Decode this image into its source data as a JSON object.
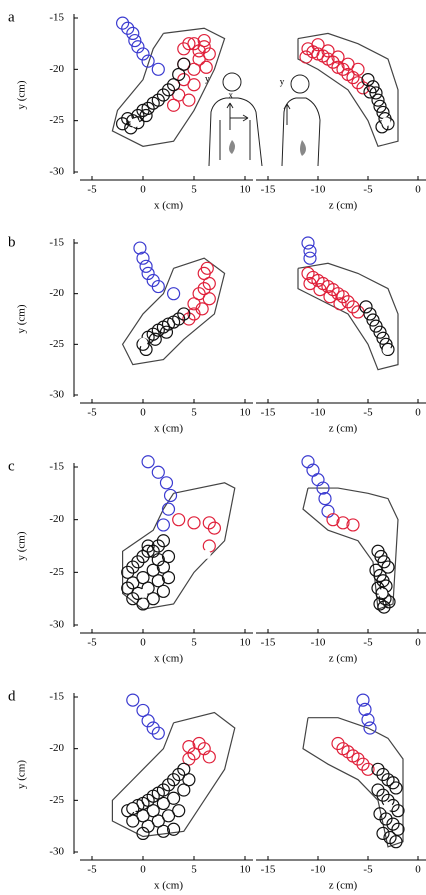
{
  "chart_data": [
    {
      "type": "scatter",
      "panel": "a",
      "xlabel": "x (cm)",
      "ylabel": "y (cm)",
      "xlim": [
        -5,
        10
      ],
      "ylim": [
        -30,
        -15
      ],
      "xticks": [
        -5,
        0,
        5,
        10
      ],
      "yticks": [
        -15,
        -20,
        -25,
        -30
      ],
      "outline": {
        "x": [
          2,
          6,
          8,
          7,
          5,
          3,
          0,
          -3,
          -2.5,
          0,
          1,
          2
        ],
        "y": [
          -16.5,
          -16,
          -17,
          -20,
          -24,
          -27,
          -27.5,
          -26,
          -24,
          -21,
          -18,
          -16.5
        ]
      },
      "annotations": [
        {
          "text": "y",
          "x": 6.3,
          "y": -21
        },
        {
          "text": "x",
          "x": 8.6,
          "y": -22.6
        }
      ],
      "series": [
        {
          "color": "#3b3bd0",
          "x": [
            -2,
            -1.5,
            -1,
            -0.8,
            -0.5,
            0,
            0.5,
            1.5
          ],
          "y": [
            -15.5,
            -16,
            -16.5,
            -17.2,
            -17.8,
            -18.5,
            -19.2,
            -20
          ]
        },
        {
          "color": "#e0203a",
          "x": [
            4.5,
            5,
            6,
            6.5,
            5.5,
            4,
            5,
            4,
            5,
            3.5,
            4.5,
            3,
            6,
            4,
            5.5,
            6.2
          ],
          "y": [
            -17.5,
            -17.5,
            -17.8,
            -18.5,
            -19,
            -19.5,
            -20,
            -21,
            -21.5,
            -22.5,
            -23,
            -23.5,
            -17.2,
            -18,
            -18.2,
            -19.8
          ]
        },
        {
          "color": "#111111",
          "x": [
            4,
            3.5,
            3,
            2.5,
            2,
            1,
            0.5,
            0,
            -0.5,
            -1,
            -1.2,
            -0.5,
            0.3,
            1.5,
            -1.5,
            -2
          ],
          "y": [
            -19.5,
            -20.5,
            -21.5,
            -22,
            -22.5,
            -23.3,
            -23.8,
            -24,
            -24.5,
            -25,
            -25.7,
            -25.2,
            -24.5,
            -23,
            -24.8,
            -25.3
          ]
        },
        {
          "color": "#ffffff",
          "filled": true,
          "x": [
            -0.8
          ],
          "y": [
            -25.2
          ]
        }
      ]
    },
    {
      "type": "scatter",
      "xlabel": "z (cm)",
      "xlim": [
        -15,
        0
      ],
      "ylim": [
        -30,
        -15
      ],
      "xticks": [
        -15,
        -10,
        -5,
        0
      ],
      "yticks": [
        -15,
        -20,
        -25,
        -30
      ],
      "outline": {
        "x": [
          -12,
          -9,
          -6,
          -3,
          -2,
          -2,
          -4,
          -5,
          -7,
          -10,
          -12,
          -12
        ],
        "y": [
          -17,
          -16.5,
          -17.5,
          -19,
          -22,
          -27,
          -27.5,
          -25,
          -22,
          -20,
          -19,
          -17
        ]
      },
      "annotations": [
        {
          "text": "y",
          "x": -13.6,
          "y": -21.3
        }
      ],
      "series": [
        {
          "color": "#e0203a",
          "x": [
            -11,
            -10.5,
            -10,
            -9.5,
            -9,
            -8.5,
            -8,
            -7.5,
            -7,
            -6.5,
            -6,
            -5.5,
            -10,
            -9,
            -8,
            -7,
            -11.2,
            -6
          ],
          "y": [
            -18,
            -18.3,
            -18.5,
            -18.7,
            -19,
            -19.3,
            -19.8,
            -20,
            -20.5,
            -20.8,
            -21.3,
            -21.8,
            -17.6,
            -18.2,
            -18.8,
            -19.5,
            -18.8,
            -20
          ]
        },
        {
          "color": "#111111",
          "x": [
            -5,
            -4.5,
            -4.2,
            -4,
            -3.8,
            -3.5,
            -3.3,
            -3,
            -4.8,
            -3.6
          ],
          "y": [
            -21,
            -21.7,
            -22.3,
            -23,
            -23.6,
            -24.2,
            -24.8,
            -25.3,
            -22.2,
            -25.6
          ]
        },
        {
          "color": "#ffffff",
          "filled": true,
          "x": [
            -3.2
          ],
          "y": [
            -25.1
          ]
        }
      ]
    },
    {
      "type": "scatter",
      "panel": "b",
      "xlabel": "x (cm)",
      "ylabel": "y (cm)",
      "xlim": [
        -5,
        10
      ],
      "ylim": [
        -30,
        -15
      ],
      "xticks": [
        -5,
        0,
        5,
        10
      ],
      "yticks": [
        -15,
        -20,
        -25,
        -30
      ],
      "outline": {
        "x": [
          3,
          6,
          8,
          7,
          4,
          2,
          -1,
          -2,
          0,
          2,
          3
        ],
        "y": [
          -17.5,
          -16.5,
          -18,
          -22,
          -24.5,
          -26.5,
          -27,
          -25,
          -22,
          -20,
          -17.5
        ]
      },
      "series": [
        {
          "color": "#3b3bd0",
          "x": [
            -0.3,
            0,
            0.3,
            0.5,
            1,
            1.5,
            3
          ],
          "y": [
            -15.5,
            -16.5,
            -17.3,
            -18,
            -18.7,
            -19.3,
            -20
          ]
        },
        {
          "color": "#e0203a",
          "x": [
            6,
            6.5,
            6,
            5.5,
            6.5,
            5,
            5.8,
            5,
            4.5,
            6.3
          ],
          "y": [
            -18,
            -19,
            -19.5,
            -20,
            -20.5,
            -21,
            -21.5,
            -22,
            -22.5,
            -17.5
          ]
        },
        {
          "color": "#111111",
          "x": [
            4,
            3.5,
            3,
            2.5,
            2,
            1.5,
            1,
            0.5,
            0,
            0.3,
            1.2,
            2.3
          ],
          "y": [
            -22,
            -22.5,
            -22.8,
            -23,
            -23.3,
            -23.6,
            -24,
            -24.3,
            -25,
            -25.5,
            -24.5,
            -23.8
          ]
        },
        {
          "color": "#ffffff",
          "filled": true,
          "x": [
            0
          ],
          "y": [
            -24.8
          ]
        }
      ]
    },
    {
      "type": "scatter",
      "xlabel": "z (cm)",
      "xlim": [
        -15,
        0
      ],
      "ylim": [
        -30,
        -15
      ],
      "xticks": [
        -15,
        -10,
        -5,
        0
      ],
      "yticks": [
        -15,
        -20,
        -25,
        -30
      ],
      "outline": {
        "x": [
          -12,
          -9,
          -6,
          -3,
          -2,
          -2,
          -4,
          -5,
          -7,
          -10,
          -12,
          -12
        ],
        "y": [
          -17.5,
          -17,
          -18,
          -19.5,
          -22,
          -27,
          -27.5,
          -25,
          -22,
          -20.5,
          -19.5,
          -17.5
        ]
      },
      "series": [
        {
          "color": "#3b3bd0",
          "x": [
            -11,
            -10.8,
            -10.8
          ],
          "y": [
            -15,
            -15.8,
            -16.5
          ]
        },
        {
          "color": "#e0203a",
          "x": [
            -11,
            -10.5,
            -10,
            -9.5,
            -9,
            -8.5,
            -8,
            -7.5,
            -7,
            -6.5,
            -6,
            -10.8,
            -9.8,
            -8.8,
            -7.8
          ],
          "y": [
            -18,
            -18.4,
            -18.7,
            -19,
            -19.3,
            -19.6,
            -20,
            -20.3,
            -20.8,
            -21.3,
            -21.8,
            -19,
            -19.6,
            -20.3,
            -21
          ]
        },
        {
          "color": "#111111",
          "x": [
            -5.2,
            -4.8,
            -4.5,
            -4.2,
            -3.8,
            -3.5,
            -3.2,
            -3
          ],
          "y": [
            -21.3,
            -22,
            -22.6,
            -23.2,
            -23.8,
            -24.4,
            -25,
            -25.5
          ]
        },
        {
          "color": "#ffffff",
          "filled": true,
          "x": [
            -3.1
          ],
          "y": [
            -25.6
          ]
        }
      ]
    },
    {
      "type": "scatter",
      "panel": "c",
      "xlabel": "x (cm)",
      "ylabel": "y (cm)",
      "xlim": [
        -5,
        10
      ],
      "ylim": [
        -30,
        -15
      ],
      "xticks": [
        -5,
        0,
        5,
        10
      ],
      "yticks": [
        -15,
        -20,
        -25,
        -30
      ],
      "outline": {
        "x": [
          3,
          8,
          9,
          8,
          5,
          3,
          0,
          -2,
          -2,
          1,
          2,
          3
        ],
        "y": [
          -17.5,
          -16.5,
          -17,
          -22,
          -25,
          -28,
          -28.5,
          -27,
          -23,
          -21,
          -19,
          -17.5
        ]
      },
      "series": [
        {
          "color": "#3b3bd0",
          "x": [
            0.5,
            1.5,
            2.3,
            2.7,
            2.5,
            2
          ],
          "y": [
            -14.5,
            -15.5,
            -16.5,
            -17.7,
            -19,
            -20.5
          ]
        },
        {
          "color": "#e0203a",
          "x": [
            3.5,
            5,
            6.5,
            7,
            6.5
          ],
          "y": [
            -20,
            -20.3,
            -20.3,
            -20.8,
            -22.5
          ]
        },
        {
          "color": "#111111",
          "x": [
            2,
            1.5,
            1,
            0.5,
            0,
            -0.5,
            -1,
            -1.5,
            2.5,
            2,
            1,
            0,
            -1,
            1.5,
            0.5,
            -0.5,
            2,
            1,
            0,
            -1,
            0.5,
            1.5,
            -1.5,
            2.5
          ],
          "y": [
            -22,
            -22.5,
            -23,
            -23,
            -23.5,
            -24,
            -24.5,
            -25,
            -23.5,
            -24.5,
            -24.8,
            -25.5,
            -26,
            -25.8,
            -26.5,
            -27,
            -26.8,
            -27.5,
            -28,
            -27.5,
            -22.5,
            -23.8,
            -26.5,
            -25.5
          ]
        },
        {
          "color": "#ffffff",
          "filled": true,
          "x": [
            6.2,
            0
          ],
          "y": [
            -23.3,
            -27
          ]
        }
      ]
    },
    {
      "type": "scatter",
      "xlabel": "z (cm)",
      "xlim": [
        -15,
        0
      ],
      "ylim": [
        -30,
        -15
      ],
      "xticks": [
        -15,
        -10,
        -5,
        0
      ],
      "yticks": [
        -15,
        -20,
        -25,
        -30
      ],
      "outline": {
        "x": [
          -11,
          -8,
          -5,
          -3,
          -2,
          -2.5,
          -4,
          -4.5,
          -6,
          -9,
          -11.5,
          -11
        ],
        "y": [
          -17,
          -17,
          -17.5,
          -18,
          -20,
          -28,
          -28.5,
          -24,
          -22,
          -21,
          -19,
          -17
        ]
      },
      "series": [
        {
          "color": "#3b3bd0",
          "x": [
            -11,
            -10.5,
            -10,
            -9.5,
            -9.3,
            -9
          ],
          "y": [
            -14.5,
            -15.3,
            -16.2,
            -17,
            -18,
            -19.2
          ]
        },
        {
          "color": "#e0203a",
          "x": [
            -8.5,
            -7.5,
            -6.5
          ],
          "y": [
            -20,
            -20.3,
            -20.5
          ]
        },
        {
          "color": "#111111",
          "x": [
            -4,
            -3.7,
            -3.4,
            -3,
            -4.2,
            -3.8,
            -3.5,
            -3.2,
            -4,
            -3.6,
            -3.3,
            -2.9,
            -3.8,
            -3.4
          ],
          "y": [
            -23,
            -23.5,
            -24,
            -24.5,
            -24.8,
            -25.3,
            -25.8,
            -26.3,
            -26.5,
            -27,
            -27.5,
            -27.8,
            -28,
            -28.3
          ]
        },
        {
          "color": "#ffffff",
          "filled": true,
          "x": [
            -3.5
          ],
          "y": [
            -27
          ]
        }
      ]
    },
    {
      "type": "scatter",
      "panel": "d",
      "xlabel": "x (cm)",
      "ylabel": "y (cm)",
      "xlim": [
        -5,
        10
      ],
      "ylim": [
        -30,
        -15
      ],
      "xticks": [
        -5,
        0,
        5,
        10
      ],
      "yticks": [
        -15,
        -20,
        -25,
        -30
      ],
      "outline": {
        "x": [
          3,
          7,
          9,
          8,
          6,
          4,
          0,
          -3,
          -3,
          0,
          2,
          3
        ],
        "y": [
          -17.5,
          -16.5,
          -18,
          -22,
          -25,
          -28,
          -28.5,
          -27,
          -25,
          -22,
          -20,
          -17.5
        ]
      },
      "series": [
        {
          "color": "#3b3bd0",
          "x": [
            -1,
            0,
            0.5,
            1,
            1.5
          ],
          "y": [
            -15.3,
            -16.3,
            -17.3,
            -18,
            -18.5
          ]
        },
        {
          "color": "#e0203a",
          "x": [
            4.5,
            5.5,
            6,
            5,
            6.5,
            4.5
          ],
          "y": [
            -19.8,
            -19.5,
            -20,
            -20.5,
            -20.8,
            -21
          ]
        },
        {
          "color": "#111111",
          "x": [
            4,
            3.5,
            3,
            2.5,
            2,
            1.5,
            1,
            0.5,
            0,
            -0.5,
            -1,
            -1.5,
            4,
            3,
            2,
            1,
            0,
            -1,
            3.5,
            2.5,
            1.5,
            0.5,
            4.5,
            2,
            0,
            3
          ],
          "y": [
            -22,
            -22.5,
            -23,
            -23.5,
            -24,
            -24.3,
            -24.6,
            -25,
            -25.3,
            -25.5,
            -25.8,
            -26,
            -24,
            -24.8,
            -25.3,
            -26,
            -26.5,
            -27,
            -26,
            -26.5,
            -27,
            -27.5,
            -23,
            -28,
            -28.2,
            -27.8
          ]
        },
        {
          "color": "#ffffff",
          "filled": true,
          "x": [
            -1
          ],
          "y": [
            -25.7
          ]
        }
      ]
    },
    {
      "type": "scatter",
      "xlabel": "z (cm)",
      "xlim": [
        -15,
        0
      ],
      "ylim": [
        -30,
        -15
      ],
      "xticks": [
        -15,
        -10,
        -5,
        0
      ],
      "yticks": [
        -15,
        -20,
        -25,
        -30
      ],
      "outline": {
        "x": [
          -11,
          -8,
          -5,
          -3,
          -1.5,
          -1.5,
          -3,
          -4,
          -6,
          -9,
          -11.5,
          -11
        ],
        "y": [
          -17,
          -17,
          -18,
          -19,
          -21,
          -29,
          -29.5,
          -25,
          -23,
          -21.5,
          -20,
          -17
        ]
      },
      "series": [
        {
          "color": "#3b3bd0",
          "x": [
            -5.5,
            -5.3,
            -5,
            -4.8
          ],
          "y": [
            -15.3,
            -16.2,
            -17.2,
            -18
          ]
        },
        {
          "color": "#e0203a",
          "x": [
            -8,
            -7.5,
            -7,
            -6.5,
            -6,
            -5.5,
            -5
          ],
          "y": [
            -19.5,
            -20,
            -20.3,
            -20.7,
            -21,
            -21.5,
            -22
          ]
        },
        {
          "color": "#111111",
          "x": [
            -4,
            -3.5,
            -3,
            -2.5,
            -2.2,
            -4,
            -3.5,
            -3,
            -2.5,
            -2,
            -3.8,
            -3.2,
            -2.5,
            -2,
            -3.5,
            -2.8,
            -2.2
          ],
          "y": [
            -22,
            -22.5,
            -23,
            -23.3,
            -23.8,
            -24,
            -24.5,
            -25,
            -25.5,
            -26,
            -26.3,
            -26.8,
            -27.3,
            -27.8,
            -28.2,
            -28.6,
            -29
          ]
        },
        {
          "color": "#ffffff",
          "filled": true,
          "x": [
            -3
          ],
          "y": [
            -25.6
          ]
        }
      ]
    }
  ]
}
